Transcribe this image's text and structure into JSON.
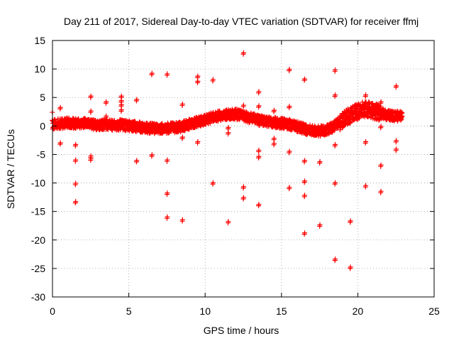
{
  "chart_data": {
    "type": "scatter",
    "title": "Day 211 of 2017, Sidereal Day-to-day VTEC variation (SDTVAR) for receiver ffmj",
    "xlabel": "GPS time / hours",
    "ylabel": "SDTVAR / TECUs",
    "xlim": [
      0,
      25
    ],
    "ylim": [
      -30,
      15
    ],
    "xticks": [
      0,
      5,
      10,
      15,
      20,
      25
    ],
    "yticks": [
      -30,
      -25,
      -20,
      -15,
      -10,
      -5,
      0,
      5,
      10,
      15
    ],
    "grid": true,
    "marker": "+",
    "color": "#ff0000",
    "baseline_band": [
      [
        0.0,
        0.3
      ],
      [
        0.5,
        0.4
      ],
      [
        1.0,
        0.6
      ],
      [
        1.5,
        0.4
      ],
      [
        2.0,
        0.5
      ],
      [
        2.5,
        0.3
      ],
      [
        3.0,
        0.2
      ],
      [
        3.5,
        0.3
      ],
      [
        4.0,
        0.1
      ],
      [
        4.5,
        0.2
      ],
      [
        5.0,
        0.0
      ],
      [
        5.5,
        -0.1
      ],
      [
        6.0,
        -0.3
      ],
      [
        6.5,
        -0.4
      ],
      [
        7.0,
        -0.5
      ],
      [
        7.5,
        -0.4
      ],
      [
        8.0,
        -0.3
      ],
      [
        8.5,
        -0.1
      ],
      [
        9.0,
        0.3
      ],
      [
        9.5,
        0.7
      ],
      [
        10.0,
        1.1
      ],
      [
        10.5,
        1.5
      ],
      [
        11.0,
        1.8
      ],
      [
        11.5,
        2.0
      ],
      [
        12.0,
        2.1
      ],
      [
        12.5,
        1.8
      ],
      [
        13.0,
        1.4
      ],
      [
        13.5,
        1.0
      ],
      [
        14.0,
        0.8
      ],
      [
        14.5,
        0.6
      ],
      [
        15.0,
        0.5
      ],
      [
        15.5,
        0.3
      ],
      [
        16.0,
        -0.1
      ],
      [
        16.5,
        -0.5
      ],
      [
        17.0,
        -0.8
      ],
      [
        17.5,
        -0.9
      ],
      [
        18.0,
        -0.7
      ],
      [
        18.5,
        0.1
      ],
      [
        19.0,
        1.0
      ],
      [
        19.5,
        1.9
      ],
      [
        20.0,
        2.5
      ],
      [
        20.5,
        3.0
      ],
      [
        21.0,
        2.7
      ],
      [
        21.5,
        2.2
      ],
      [
        22.0,
        1.9
      ],
      [
        22.5,
        1.7
      ],
      [
        22.9,
        1.8
      ]
    ],
    "outliers": [
      [
        0.5,
        3.0
      ],
      [
        0.5,
        -3.2
      ],
      [
        1.5,
        -3.5
      ],
      [
        1.5,
        -6.2
      ],
      [
        1.5,
        -10.3
      ],
      [
        1.5,
        -13.5
      ],
      [
        2.5,
        5.0
      ],
      [
        2.5,
        2.4
      ],
      [
        2.5,
        -5.5
      ],
      [
        2.5,
        -6.0
      ],
      [
        3.5,
        4.0
      ],
      [
        3.5,
        1.5
      ],
      [
        4.5,
        5.0
      ],
      [
        4.5,
        4.2
      ],
      [
        4.5,
        3.5
      ],
      [
        4.5,
        2.6
      ],
      [
        5.5,
        4.4
      ],
      [
        5.5,
        -6.3
      ],
      [
        6.5,
        9.0
      ],
      [
        6.5,
        -5.3
      ],
      [
        7.5,
        8.9
      ],
      [
        7.5,
        -6.2
      ],
      [
        7.5,
        -12.0
      ],
      [
        7.5,
        -16.2
      ],
      [
        8.5,
        3.6
      ],
      [
        8.5,
        -2.2
      ],
      [
        8.5,
        -16.7
      ],
      [
        9.5,
        8.5
      ],
      [
        9.5,
        7.6
      ],
      [
        9.5,
        -3.0
      ],
      [
        10.5,
        7.9
      ],
      [
        10.5,
        -10.2
      ],
      [
        11.5,
        -0.5
      ],
      [
        11.5,
        -1.4
      ],
      [
        11.5,
        -17.0
      ],
      [
        12.5,
        12.6
      ],
      [
        12.5,
        3.4
      ],
      [
        12.5,
        -10.9
      ],
      [
        12.5,
        -12.8
      ],
      [
        13.5,
        5.8
      ],
      [
        13.5,
        3.3
      ],
      [
        13.5,
        -4.5
      ],
      [
        13.5,
        -5.6
      ],
      [
        13.5,
        -14.0
      ],
      [
        14.5,
        2.5
      ],
      [
        14.5,
        -2.4
      ],
      [
        14.5,
        -3.3
      ],
      [
        15.5,
        9.7
      ],
      [
        15.5,
        3.2
      ],
      [
        15.5,
        -4.7
      ],
      [
        15.5,
        -11.0
      ],
      [
        16.5,
        8.0
      ],
      [
        16.5,
        -6.3
      ],
      [
        16.5,
        -9.9
      ],
      [
        16.5,
        -12.4
      ],
      [
        16.5,
        -19.0
      ],
      [
        17.5,
        -6.5
      ],
      [
        17.5,
        -17.6
      ],
      [
        18.5,
        9.6
      ],
      [
        18.5,
        5.2
      ],
      [
        18.5,
        -3.5
      ],
      [
        18.5,
        -10.2
      ],
      [
        18.5,
        -23.6
      ],
      [
        19.5,
        0.5
      ],
      [
        19.5,
        -16.9
      ],
      [
        19.5,
        -25.0
      ],
      [
        20.5,
        5.2
      ],
      [
        20.5,
        -3.0
      ],
      [
        20.5,
        -10.7
      ],
      [
        21.5,
        4.0
      ],
      [
        21.5,
        -0.3
      ],
      [
        21.5,
        -7.1
      ],
      [
        21.5,
        -11.7
      ],
      [
        22.5,
        6.8
      ],
      [
        22.5,
        -2.8
      ],
      [
        22.5,
        -4.3
      ]
    ]
  }
}
